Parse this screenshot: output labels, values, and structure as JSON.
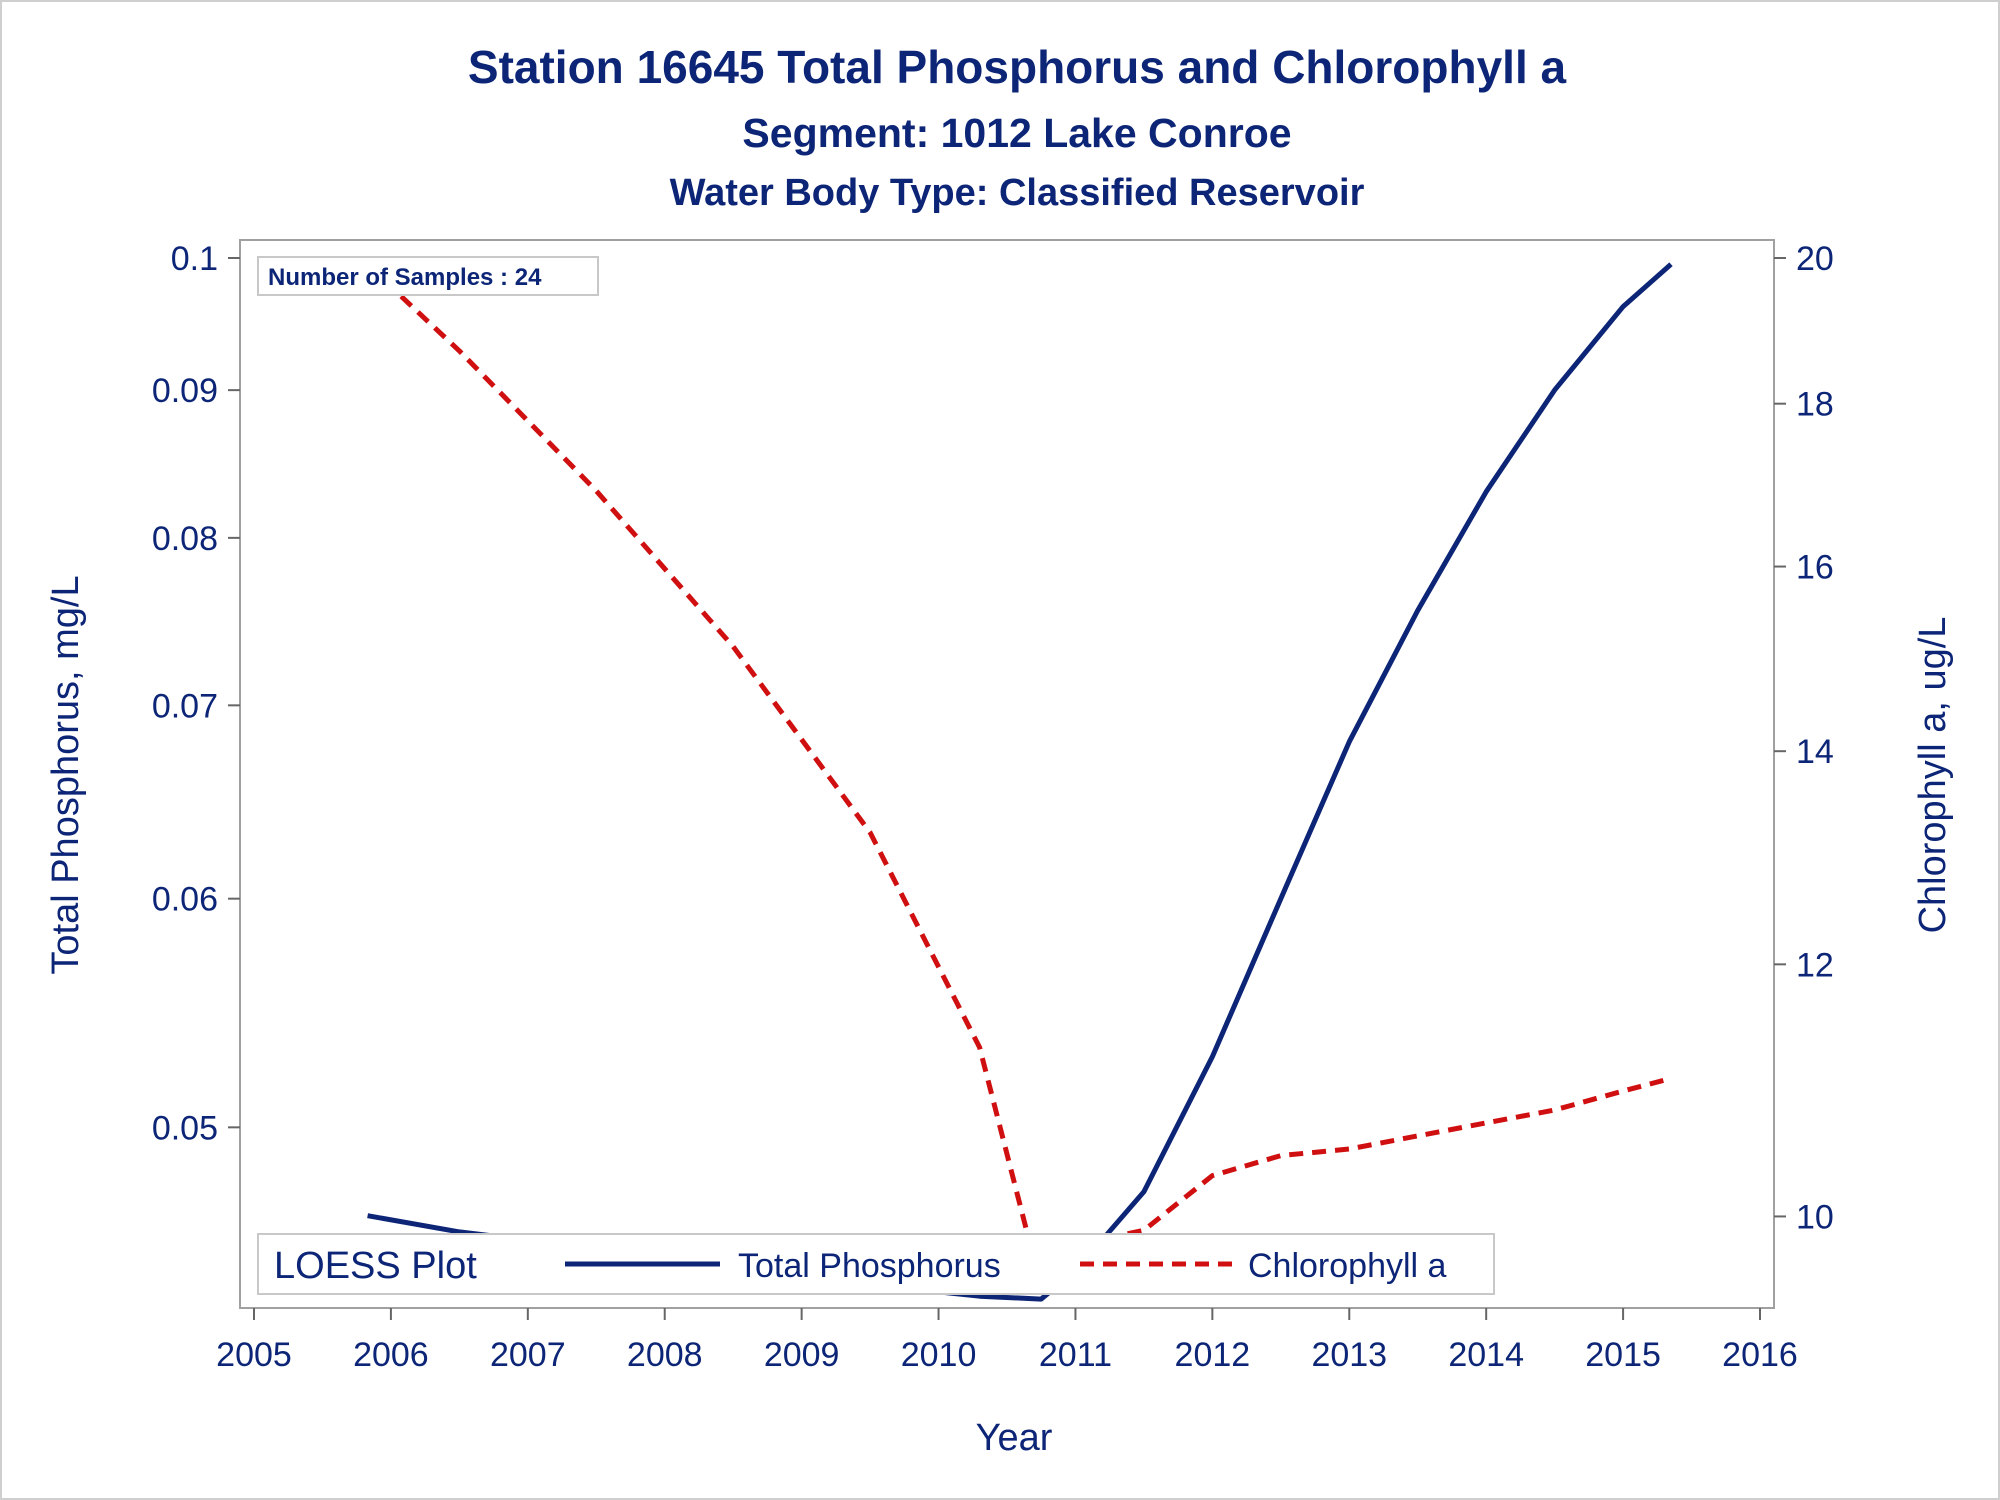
{
  "chart_data": {
    "type": "line",
    "title": "Station 16645   Total Phosphorus and Chlorophyll a",
    "subtitle": "Segment: 1012  Lake Conroe",
    "subtitle2": "Water Body Type: Classified Reservoir",
    "xlabel": "Year",
    "ylabel_left": "Total Phosphorus, mg/L",
    "ylabel_right": "Chlorophyll a, ug/L",
    "xlim": [
      2005,
      2016
    ],
    "ylim_left": [
      0.0435,
      0.1
    ],
    "ylim_right": [
      9.4,
      20
    ],
    "y_left_scale": "log",
    "y_right_scale": "log",
    "x_ticks": [
      "2005",
      "2006",
      "2007",
      "2008",
      "2009",
      "2010",
      "2011",
      "2012",
      "2013",
      "2014",
      "2015",
      "2016"
    ],
    "y_left_ticks": [
      "0.1",
      "0.09",
      "0.08",
      "0.07",
      "0.06",
      "0.05"
    ],
    "y_right_ticks": [
      "20",
      "18",
      "16",
      "14",
      "12",
      "10"
    ],
    "annotation": "Number of Samples : 24",
    "legend": {
      "title": "LOESS Plot",
      "position": "bottom-inside"
    },
    "series": [
      {
        "name": "Total Phosphorus",
        "axis": "left",
        "color": "#0c2577",
        "style": "solid",
        "x": [
          2005.83,
          2006.5,
          2007.5,
          2008.5,
          2009.5,
          2010.3,
          2010.75,
          2011.0,
          2011.5,
          2012.0,
          2012.5,
          2013.0,
          2013.5,
          2014.0,
          2014.5,
          2015.0,
          2015.35
        ],
        "y": [
          0.0466,
          0.046,
          0.0454,
          0.0448,
          0.0441,
          0.0437,
          0.0436,
          0.0446,
          0.0475,
          0.0529,
          0.06,
          0.068,
          0.0755,
          0.083,
          0.09,
          0.0962,
          0.0995
        ]
      },
      {
        "name": "Chlorophyll a",
        "axis": "right",
        "color": "#d01010",
        "style": "dashed",
        "x": [
          2005.83,
          2006.5,
          2007.5,
          2008.5,
          2009.5,
          2010.3,
          2010.75,
          2011.0,
          2011.5,
          2012.0,
          2012.5,
          2013.0,
          2013.5,
          2014.0,
          2014.5,
          2015.0,
          2015.35
        ],
        "y": [
          19.9,
          18.7,
          16.9,
          15.1,
          13.2,
          11.3,
          9.5,
          9.8,
          9.9,
          10.3,
          10.45,
          10.5,
          10.6,
          10.7,
          10.8,
          10.95,
          11.05
        ]
      }
    ]
  }
}
